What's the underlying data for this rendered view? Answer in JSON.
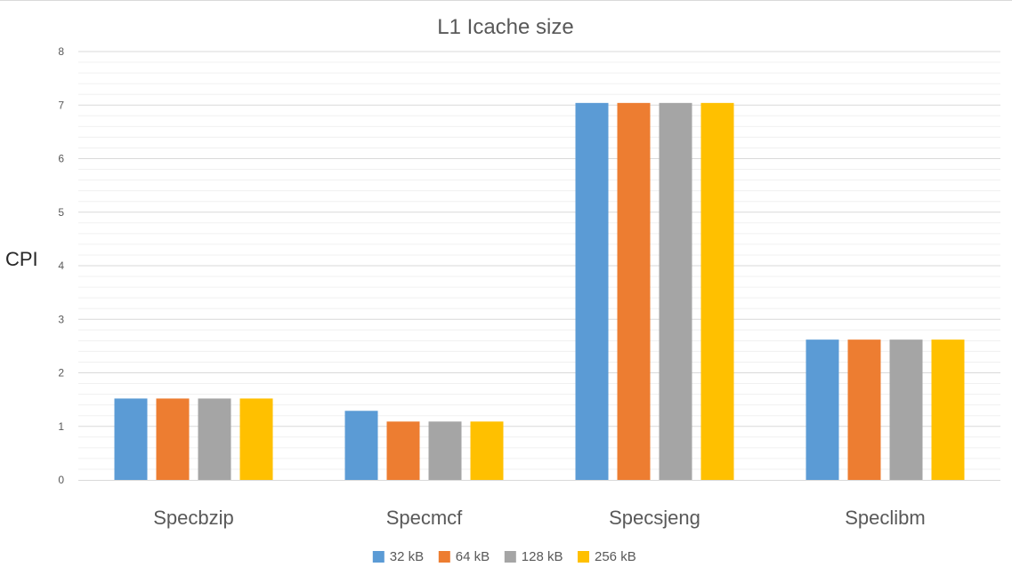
{
  "chart_data": {
    "type": "bar",
    "title": "L1 Icache size",
    "xlabel": "",
    "ylabel": "CPI",
    "categories": [
      "Specbzip",
      "Specmcf",
      "Specsjeng",
      "Speclibm"
    ],
    "series": [
      {
        "name": "32 kB",
        "color": "#5b9bd5",
        "values": [
          1.52,
          1.29,
          7.04,
          2.62
        ]
      },
      {
        "name": "64 kB",
        "color": "#ed7d31",
        "values": [
          1.52,
          1.09,
          7.04,
          2.62
        ]
      },
      {
        "name": "128 kB",
        "color": "#a5a5a5",
        "values": [
          1.52,
          1.09,
          7.04,
          2.62
        ]
      },
      {
        "name": "256 kB",
        "color": "#ffc000",
        "values": [
          1.52,
          1.09,
          7.04,
          2.62
        ]
      }
    ],
    "ylim": [
      0,
      8
    ],
    "yticks": [
      "0",
      "1",
      "2",
      "3",
      "4",
      "5",
      "6",
      "7",
      "8"
    ],
    "grid": true,
    "legend_position": "bottom"
  }
}
